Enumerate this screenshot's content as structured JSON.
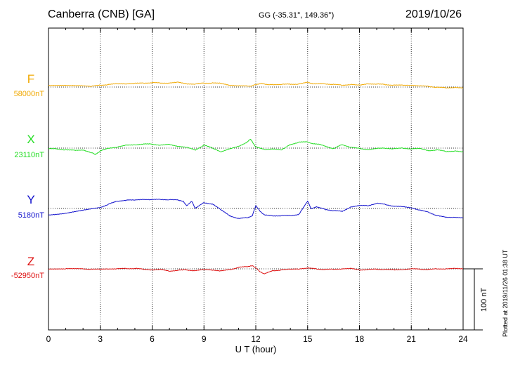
{
  "header": {
    "station": "Canberra (CNB)  [GA]",
    "coords": "GG (-35.31°, 149.36°)",
    "date": "2019/10/26",
    "plotted": "Plotted at 2019/11/26 01:38 UT"
  },
  "chart_data": {
    "type": "line",
    "xlabel": "U T (hour)",
    "xlim": [
      0,
      24
    ],
    "xticks": [
      0,
      3,
      6,
      9,
      12,
      15,
      18,
      21,
      24
    ],
    "grid": true,
    "scale_bar": "100 nT",
    "series": [
      {
        "name": "F",
        "baseline": "58000nT",
        "color": "#f0a800",
        "x": [
          0,
          1,
          2,
          2.5,
          3,
          3.5,
          4,
          4.5,
          5,
          5.5,
          6,
          6.5,
          7,
          7.5,
          8,
          8.5,
          9,
          9.5,
          10,
          10.5,
          11,
          11.5,
          11.8,
          12,
          12.3,
          12.7,
          13,
          13.5,
          14,
          14.5,
          15,
          15.3,
          15.7,
          16,
          16.5,
          17,
          17.5,
          18,
          18.5,
          19,
          19.5,
          20,
          20.5,
          21,
          21.5,
          22,
          22.5,
          23,
          23.5,
          24
        ],
        "y": [
          4,
          4,
          4,
          2,
          5,
          7,
          9,
          9,
          10,
          11,
          12,
          11,
          11,
          13,
          9,
          8,
          11,
          11,
          10,
          5,
          3,
          3,
          3,
          7,
          10,
          6,
          7,
          7,
          8,
          8,
          13,
          9,
          9,
          9,
          7,
          5,
          7,
          5,
          9,
          8,
          7,
          5,
          5,
          5,
          3,
          2,
          -1,
          -2,
          -1,
          -3
        ]
      },
      {
        "name": "X",
        "baseline": "23110nT",
        "color": "#22dd22",
        "x": [
          0,
          0.5,
          1,
          1.5,
          2,
          2.5,
          2.7,
          3,
          3.5,
          4,
          4.5,
          5,
          5.5,
          6,
          6.5,
          7,
          7.5,
          8,
          8.5,
          9,
          9.5,
          10,
          10.5,
          11,
          11.5,
          11.7,
          12,
          12.5,
          13,
          13.5,
          14,
          14.5,
          15,
          15.3,
          15.7,
          16,
          16.5,
          17,
          17.5,
          18,
          18.5,
          19,
          19.5,
          20,
          20.5,
          21,
          21.5,
          22,
          22.5,
          23,
          23.5,
          24
        ],
        "y": [
          -2,
          -2,
          -5,
          -6,
          -5,
          -13,
          -17,
          -8,
          0,
          3,
          8,
          9,
          11,
          11,
          8,
          10,
          5,
          2,
          -5,
          8,
          0,
          -10,
          -2,
          5,
          16,
          25,
          3,
          -4,
          -2,
          -5,
          10,
          16,
          17,
          12,
          10,
          6,
          -2,
          10,
          2,
          -1,
          -4,
          -1,
          0,
          -2,
          0,
          -2,
          -1,
          -7,
          -5,
          -9,
          -8,
          -11
        ]
      },
      {
        "name": "Y",
        "baseline": "5180nT",
        "color": "#1010cc",
        "x": [
          0,
          1,
          2,
          3,
          3.5,
          4,
          4.5,
          5,
          5.5,
          6,
          6.5,
          7,
          7.5,
          7.8,
          8,
          8.3,
          8.5,
          9,
          9.5,
          10,
          10.5,
          11,
          11.5,
          11.8,
          12,
          12.3,
          12.5,
          13,
          13.5,
          14,
          14.5,
          15,
          15.2,
          15.5,
          16,
          16.5,
          17,
          17.5,
          18,
          18.5,
          19,
          19.5,
          20,
          20.5,
          21,
          21.5,
          22,
          22.5,
          23,
          23.5,
          24
        ],
        "y": [
          -18,
          -13,
          -5,
          3,
          12,
          20,
          23,
          23,
          25,
          24,
          25,
          24,
          23,
          20,
          7,
          20,
          0,
          16,
          12,
          -4,
          -20,
          -28,
          -25,
          -20,
          8,
          -10,
          -18,
          -20,
          -20,
          -20,
          -16,
          20,
          0,
          4,
          -2,
          -6,
          -8,
          4,
          8,
          8,
          14,
          11,
          6,
          5,
          2,
          -5,
          -10,
          -20,
          -24,
          -24,
          -26
        ]
      },
      {
        "name": "Z",
        "baseline": "-52950nT",
        "color": "#dd1010",
        "x": [
          0,
          1,
          2,
          2.5,
          3,
          3.5,
          4,
          4.5,
          5,
          5.5,
          6,
          6.5,
          7,
          7.5,
          8,
          8.5,
          9,
          9.5,
          10,
          10.5,
          11,
          11.5,
          11.8,
          12,
          12.2,
          12.5,
          13,
          13.5,
          14,
          14.5,
          15,
          15.5,
          16,
          16.5,
          17,
          17.5,
          18,
          18.5,
          19,
          19.5,
          20,
          20.5,
          21,
          21.5,
          22,
          22.5,
          23,
          23.5,
          24
        ],
        "y": [
          0,
          0,
          0,
          -1,
          -1,
          0,
          0,
          1,
          1,
          -1,
          -3,
          -2,
          -6,
          -4,
          -3,
          -5,
          -2,
          -3,
          -6,
          -2,
          4,
          6,
          9,
          2,
          -6,
          -14,
          -5,
          -3,
          -1,
          0,
          2,
          0,
          -2,
          -1,
          0,
          1,
          -3,
          -2,
          -1,
          -2,
          -3,
          -2,
          0,
          -1,
          -2,
          0,
          0,
          1,
          0
        ]
      }
    ]
  }
}
